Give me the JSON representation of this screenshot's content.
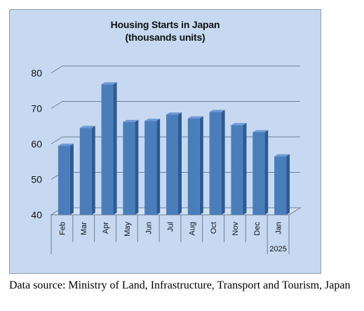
{
  "chart_data": {
    "type": "bar",
    "title_line1": "Housing Starts in Japan",
    "title_line2": "(thousands units)",
    "categories": [
      "Feb",
      "Mar",
      "Apr",
      "May",
      "Jun",
      "Jul",
      "Aug",
      "Oct",
      "Nov",
      "Dec",
      "Jan"
    ],
    "year_label": "2025",
    "values": [
      59.5,
      64.5,
      76.8,
      66.2,
      66.5,
      68.3,
      67.2,
      69.0,
      65.3,
      63.3,
      56.5
    ],
    "ylim": [
      40,
      80
    ],
    "yticks": [
      "40",
      "50",
      "60",
      "70",
      "80"
    ],
    "grid": true,
    "bar_color": "#4a7ebb",
    "bar_top_color": "#6f9bd5",
    "bar_side_color": "#2e5a8f",
    "plot_background": "#c6d9f1"
  },
  "source_note": "Data source: Ministry of Land, Infrastructure, Transport and Tourism, Japan"
}
